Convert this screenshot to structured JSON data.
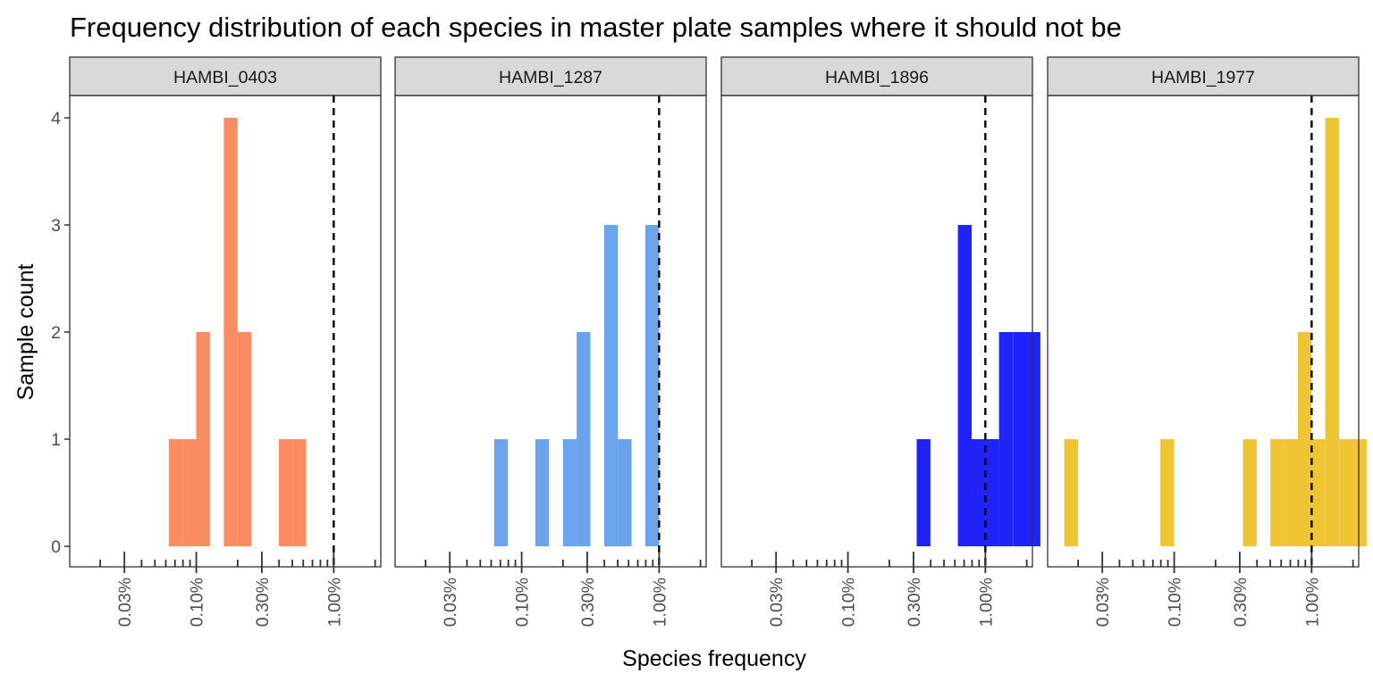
{
  "chart_data": {
    "type": "bar",
    "title": "Frequency distribution of each species in master plate samples where it should not be",
    "xlabel": "Species frequency",
    "ylabel": "Sample count",
    "x_scale": "log10",
    "xlim": [
      0.00012,
      0.022
    ],
    "ylim": [
      0,
      4
    ],
    "y_ticks": [
      "0",
      "1",
      "2",
      "3",
      "4"
    ],
    "x_ticks": [
      "0.03%",
      "0.10%",
      "0.30%",
      "1.00%"
    ],
    "x_tick_values": [
      0.0003,
      0.001,
      0.003,
      0.01
    ],
    "threshold_line": 0.01,
    "grid": false,
    "legend": "none",
    "bin_width_log10": 0.1,
    "panels": [
      {
        "label": "HAMBI_0403",
        "color": "#fc8d62",
        "bins": [
          {
            "x": 0.000708,
            "count": 1
          },
          {
            "x": 0.000891,
            "count": 1
          },
          {
            "x": 0.00112,
            "count": 2
          },
          {
            "x": 0.00178,
            "count": 4
          },
          {
            "x": 0.00224,
            "count": 2
          },
          {
            "x": 0.00447,
            "count": 1
          },
          {
            "x": 0.00562,
            "count": 1
          }
        ]
      },
      {
        "label": "HAMBI_1287",
        "color": "#6ba3ec",
        "bins": [
          {
            "x": 0.000708,
            "count": 1
          },
          {
            "x": 0.00141,
            "count": 1
          },
          {
            "x": 0.00224,
            "count": 1
          },
          {
            "x": 0.00282,
            "count": 2
          },
          {
            "x": 0.00447,
            "count": 3
          },
          {
            "x": 0.00562,
            "count": 1
          },
          {
            "x": 0.00891,
            "count": 3
          }
        ]
      },
      {
        "label": "HAMBI_1896",
        "color": "#1f23f8",
        "bins": [
          {
            "x": 0.00355,
            "count": 1
          },
          {
            "x": 0.00708,
            "count": 3
          },
          {
            "x": 0.00891,
            "count": 1
          },
          {
            "x": 0.0112,
            "count": 1
          },
          {
            "x": 0.0141,
            "count": 2
          },
          {
            "x": 0.0178,
            "count": 2
          },
          {
            "x": 0.0224,
            "count": 2
          }
        ]
      },
      {
        "label": "HAMBI_1977",
        "color": "#efc533",
        "bins": [
          {
            "x": 0.000178,
            "count": 1
          },
          {
            "x": 0.000891,
            "count": 1
          },
          {
            "x": 0.00355,
            "count": 1
          },
          {
            "x": 0.00562,
            "count": 1
          },
          {
            "x": 0.00708,
            "count": 1
          },
          {
            "x": 0.00891,
            "count": 2
          },
          {
            "x": 0.0112,
            "count": 1
          },
          {
            "x": 0.0141,
            "count": 4
          },
          {
            "x": 0.0178,
            "count": 1
          },
          {
            "x": 0.0224,
            "count": 1
          }
        ]
      }
    ]
  }
}
